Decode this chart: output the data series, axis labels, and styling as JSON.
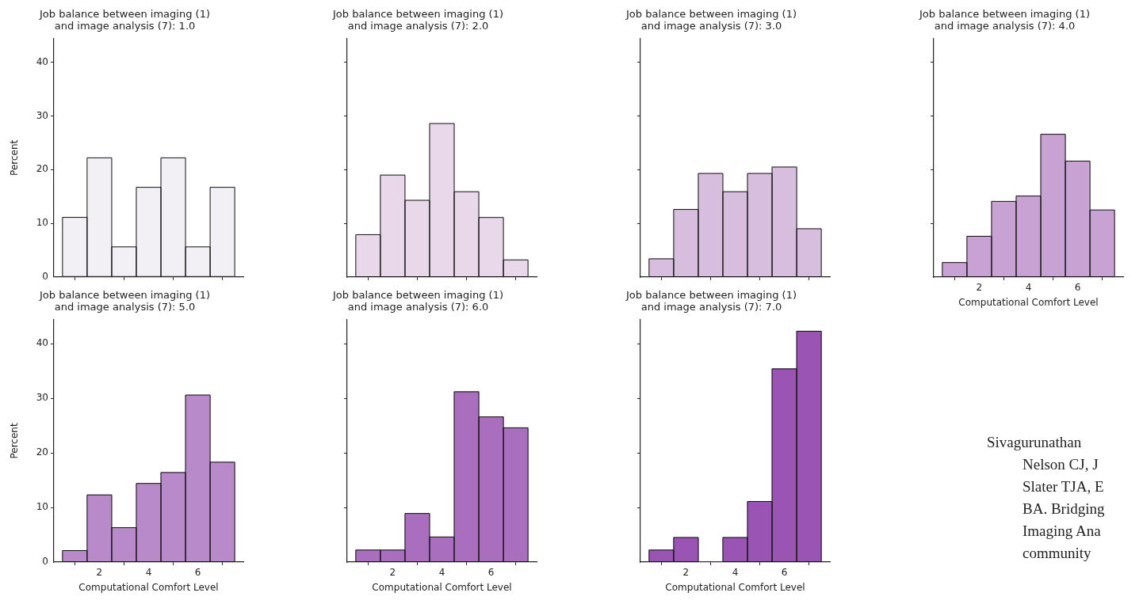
{
  "chart_data": [
    {
      "type": "histogram",
      "title": "Job balance between imaging (1) and image analysis (7): 1.0",
      "ylabel": "Percent",
      "bins": [
        0.5,
        1.5,
        2.5,
        3.5,
        4.5,
        5.5,
        6.5,
        7.5
      ],
      "values": [
        11.1,
        22.2,
        5.6,
        16.7,
        22.2,
        5.6,
        16.7
      ],
      "color": "#f3f0f5",
      "xlim": [
        0.15,
        7.85
      ],
      "xticks": [
        2,
        4,
        6
      ],
      "ylim": [
        0,
        44.4
      ],
      "yticks": [
        0,
        10,
        20,
        30,
        40
      ],
      "tick_labels": "y"
    },
    {
      "type": "histogram",
      "title": "Job balance between imaging (1) and image analysis (7): 2.0",
      "bins": [
        0.5,
        1.5,
        2.5,
        3.5,
        4.5,
        5.5,
        6.5,
        7.5
      ],
      "values": [
        7.9,
        19.0,
        14.3,
        28.6,
        15.9,
        11.1,
        3.2
      ],
      "color": "#e8d8ea",
      "xlim": [
        0.15,
        7.85
      ],
      "xticks": [
        2,
        4,
        6
      ],
      "ylim": [
        0,
        44.4
      ],
      "yticks": [
        0,
        10,
        20,
        30,
        40
      ],
      "tick_labels": false
    },
    {
      "type": "histogram",
      "title": "Job balance between imaging (1) and image analysis (7): 3.0",
      "bins": [
        0.5,
        1.5,
        2.5,
        3.5,
        4.5,
        5.5,
        6.5,
        7.5
      ],
      "values": [
        3.4,
        12.6,
        19.3,
        15.9,
        19.3,
        20.5,
        9.0
      ],
      "color": "#d8bede",
      "xlim": [
        0.15,
        7.85
      ],
      "xticks": [
        2,
        4,
        6
      ],
      "ylim": [
        0,
        44.4
      ],
      "yticks": [
        0,
        10,
        20,
        30,
        40
      ],
      "tick_labels": false
    },
    {
      "type": "histogram",
      "title": "Job balance between imaging (1) and image analysis (7): 4.0",
      "xlabel": "Computational Comfort Level",
      "bins": [
        0.5,
        1.5,
        2.5,
        3.5,
        4.5,
        5.5,
        6.5,
        7.5
      ],
      "values": [
        2.7,
        7.6,
        14.1,
        15.1,
        26.6,
        21.6,
        12.5
      ],
      "color": "#c9a2d4",
      "xlim": [
        0.15,
        7.85
      ],
      "xticks": [
        2,
        4,
        6
      ],
      "ylim": [
        0,
        44.4
      ],
      "yticks": [
        0,
        10,
        20,
        30,
        40
      ],
      "tick_labels": "x"
    },
    {
      "type": "histogram",
      "title": "Job balance between imaging (1) and image analysis (7): 5.0",
      "xlabel": "Computational Comfort Level",
      "ylabel": "Percent",
      "bins": [
        0.5,
        1.5,
        2.5,
        3.5,
        4.5,
        5.5,
        6.5,
        7.5
      ],
      "values": [
        2.1,
        12.3,
        6.3,
        14.4,
        16.4,
        30.6,
        18.3
      ],
      "color": "#b98ac9",
      "xlim": [
        0.15,
        7.85
      ],
      "xticks": [
        2,
        4,
        6
      ],
      "ylim": [
        0,
        44.4
      ],
      "yticks": [
        0,
        10,
        20,
        30,
        40
      ]
    },
    {
      "type": "histogram",
      "title": "Job balance between imaging (1) and image analysis (7): 6.0",
      "xlabel": "Computational Comfort Level",
      "bins": [
        0.5,
        1.5,
        2.5,
        3.5,
        4.5,
        5.5,
        6.5,
        7.5
      ],
      "values": [
        2.2,
        2.2,
        8.9,
        4.6,
        31.2,
        26.6,
        24.6
      ],
      "color": "#a96fbe",
      "xlim": [
        0.15,
        7.85
      ],
      "xticks": [
        2,
        4,
        6
      ],
      "ylim": [
        0,
        44.4
      ],
      "yticks": [
        0,
        10,
        20,
        30,
        40
      ],
      "tick_labels": "x"
    },
    {
      "type": "histogram",
      "title": "Job balance between imaging (1) and image analysis (7): 7.0",
      "xlabel": "Computational Comfort Level",
      "bins": [
        0.5,
        1.5,
        2.5,
        3.5,
        4.5,
        5.5,
        6.5,
        7.5
      ],
      "values": [
        2.2,
        4.5,
        0,
        4.5,
        11.1,
        35.4,
        42.3
      ],
      "color": "#9a55b4",
      "xlim": [
        0.15,
        7.85
      ],
      "xticks": [
        2,
        4,
        6
      ],
      "ylim": [
        0,
        44.4
      ],
      "yticks": [
        0,
        10,
        20,
        30,
        40
      ],
      "tick_labels": "x"
    },
    {
      "type": "other",
      "annotations": [
        "Sivagurunathan",
        "Nelson CJ, J",
        "Slater TJA, E",
        "BA. Bridging",
        "Imaging Ana",
        "community"
      ]
    }
  ]
}
